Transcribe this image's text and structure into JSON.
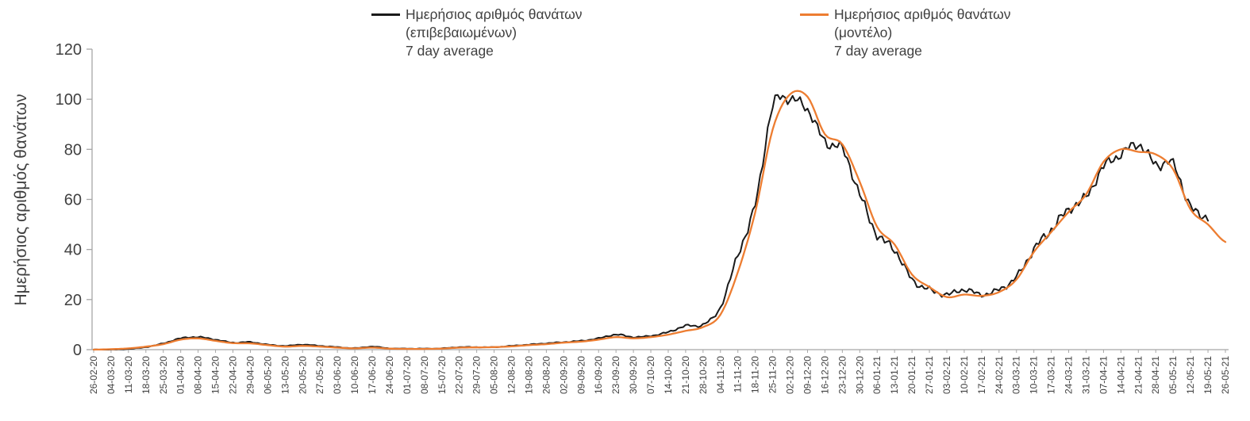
{
  "legend": {
    "series1": {
      "line1": "Ημερήσιος αριθμός θανάτων",
      "line2": "(επιβεβαιωμένων)",
      "line3": "7 day average"
    },
    "series2": {
      "line1": "Ημερήσιος αριθμός θανάτων",
      "line2": "(μοντέλο)",
      "line3": "7 day average"
    }
  },
  "chart_data": {
    "type": "line",
    "title": "",
    "xlabel": "",
    "ylabel": "Ημερήσιος αριθμός θανάτων",
    "ylim": [
      0,
      120
    ],
    "yticks": [
      0,
      20,
      40,
      60,
      80,
      100,
      120
    ],
    "grid": false,
    "legend_position": "top",
    "categories": [
      "26-02-20",
      "04-03-20",
      "11-03-20",
      "18-03-20",
      "25-03-20",
      "01-04-20",
      "08-04-20",
      "15-04-20",
      "22-04-20",
      "29-04-20",
      "06-05-20",
      "13-05-20",
      "20-05-20",
      "27-05-20",
      "03-06-20",
      "10-06-20",
      "17-06-20",
      "24-06-20",
      "01-07-20",
      "08-07-20",
      "15-07-20",
      "22-07-20",
      "29-07-20",
      "05-08-20",
      "12-08-20",
      "19-08-20",
      "26-08-20",
      "02-09-20",
      "09-09-20",
      "16-09-20",
      "23-09-20",
      "30-09-20",
      "07-10-20",
      "14-10-20",
      "21-10-20",
      "28-10-20",
      "04-11-20",
      "11-11-20",
      "18-11-20",
      "25-11-20",
      "02-12-20",
      "09-12-20",
      "16-12-20",
      "23-12-20",
      "30-12-20",
      "06-01-21",
      "13-01-21",
      "20-01-21",
      "27-01-21",
      "03-02-21",
      "10-02-21",
      "17-02-21",
      "24-02-21",
      "03-03-21",
      "10-03-21",
      "17-03-21",
      "24-03-21",
      "31-03-21",
      "07-04-21",
      "14-04-21",
      "21-04-21",
      "28-04-21",
      "05-05-21",
      "12-05-21",
      "19-05-21",
      "26-05-21"
    ],
    "series": [
      {
        "name": "Ημερήσιος αριθμός θανάτων (επιβεβαιωμένων) 7 day average",
        "color": "#1a1a1a",
        "values": [
          0,
          0,
          0.3,
          1,
          2.5,
          4.5,
          5,
          4,
          2.8,
          3,
          2,
          1.5,
          2,
          1.5,
          1,
          0.6,
          1.2,
          0.5,
          0.4,
          0.4,
          0.5,
          1,
          1,
          1,
          1.5,
          2,
          2.5,
          3,
          3.5,
          4.5,
          6,
          5,
          5.5,
          7,
          9.5,
          10,
          17,
          38,
          58,
          97,
          100,
          96,
          83,
          80,
          62,
          46,
          40,
          28,
          24,
          22,
          24,
          22,
          24,
          29,
          40,
          48,
          56,
          61,
          73,
          78,
          82,
          74,
          74,
          57,
          53,
          null
        ]
      },
      {
        "name": "Ημερήσιος αριθμός θανάτων (μοντέλο) 7 day average",
        "color": "#ED7D31",
        "values": [
          0,
          0.2,
          0.5,
          1.2,
          2.2,
          4,
          4.5,
          3.5,
          2.6,
          2.5,
          1.8,
          1.2,
          1.5,
          1.2,
          0.8,
          0.5,
          0.8,
          0.4,
          0.3,
          0.3,
          0.4,
          0.8,
          0.9,
          1,
          1.3,
          1.8,
          2.2,
          2.8,
          3.2,
          4,
          5,
          4.5,
          5,
          6,
          7.5,
          9,
          14,
          31,
          55,
          88,
          102,
          101,
          86,
          82,
          67,
          49,
          42,
          30,
          25,
          21,
          22,
          21.5,
          23,
          28,
          39,
          47,
          55,
          62,
          75,
          80,
          79,
          78,
          72,
          56,
          50,
          43
        ]
      }
    ]
  }
}
